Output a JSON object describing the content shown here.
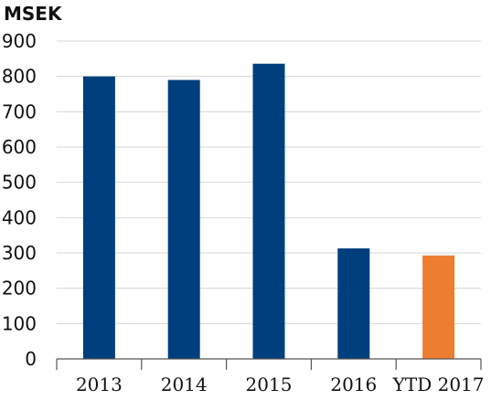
{
  "chart_data": {
    "type": "bar",
    "title": "",
    "unit_label": "MSEK",
    "xlabel": "",
    "ylabel": "",
    "categories": [
      "2013",
      "2014",
      "2015",
      "2016",
      "YTD 2017"
    ],
    "values": [
      800,
      790,
      836,
      313,
      293
    ],
    "bar_colors": [
      "#003f7d",
      "#003f7d",
      "#003f7d",
      "#003f7d",
      "#ed7d31"
    ],
    "ylim": [
      0,
      900
    ],
    "yticks": [
      "0",
      "100",
      "200",
      "300",
      "400",
      "500",
      "600",
      "700",
      "800",
      "900"
    ],
    "grid": true,
    "legend": "none"
  }
}
